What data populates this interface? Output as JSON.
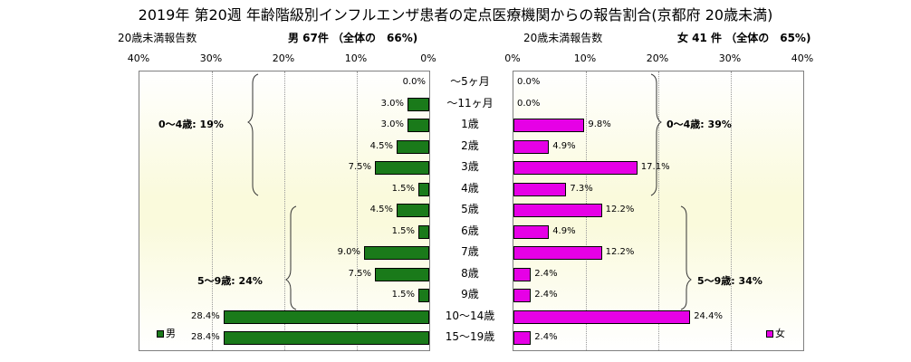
{
  "chart_data": {
    "type": "bar",
    "title": "2019年 第20週 年齢階級別インフルエンザ患者の定点医療機関からの報告割合(京都府 20歳未満)",
    "left_subtitle": "20歳未満報告数",
    "left_total": "男 67件 （全体の　66%)",
    "right_subtitle": "20歳未満報告数",
    "right_total": "女 41 件 （全体の　65%)",
    "xlim": [
      0,
      40
    ],
    "ticks_left": [
      "40%",
      "30%",
      "20%",
      "10%",
      "0%"
    ],
    "ticks_right": [
      "0%",
      "10%",
      "20%",
      "30%",
      "40%"
    ],
    "categories": [
      "～5ヶ月",
      "～11ヶ月",
      "1歳",
      "2歳",
      "3歳",
      "4歳",
      "5歳",
      "6歳",
      "7歳",
      "8歳",
      "9歳",
      "10～14歳",
      "15～19歳"
    ],
    "series": [
      {
        "name": "男",
        "color": "#1a7a1a",
        "values": [
          0.0,
          3.0,
          3.0,
          4.5,
          7.5,
          1.5,
          4.5,
          1.5,
          9.0,
          7.5,
          1.5,
          28.4,
          28.4
        ],
        "labels": [
          "0.0%",
          "3.0%",
          "3.0%",
          "4.5%",
          "7.5%",
          "1.5%",
          "4.5%",
          "1.5%",
          "9.0%",
          "7.5%",
          "1.5%",
          "28.4%",
          "28.4%"
        ]
      },
      {
        "name": "女",
        "color": "#e600e6",
        "values": [
          0.0,
          0.0,
          9.8,
          4.9,
          17.1,
          7.3,
          12.2,
          4.9,
          12.2,
          2.4,
          2.4,
          24.4,
          2.4
        ],
        "labels": [
          "0.0%",
          "0.0%",
          "9.8%",
          "4.9%",
          "17.1%",
          "7.3%",
          "12.2%",
          "4.9%",
          "12.2%",
          "2.4%",
          "2.4%",
          "24.4%",
          "2.4%"
        ]
      }
    ],
    "annotations": {
      "male_0_4": "0～4歳: 19%",
      "male_5_9": "5～9歳: 24%",
      "female_0_4": "0～4歳: 39%",
      "female_5_9": "5～9歳: 34%"
    },
    "grid": true,
    "legend_position": "bottom-corners"
  }
}
